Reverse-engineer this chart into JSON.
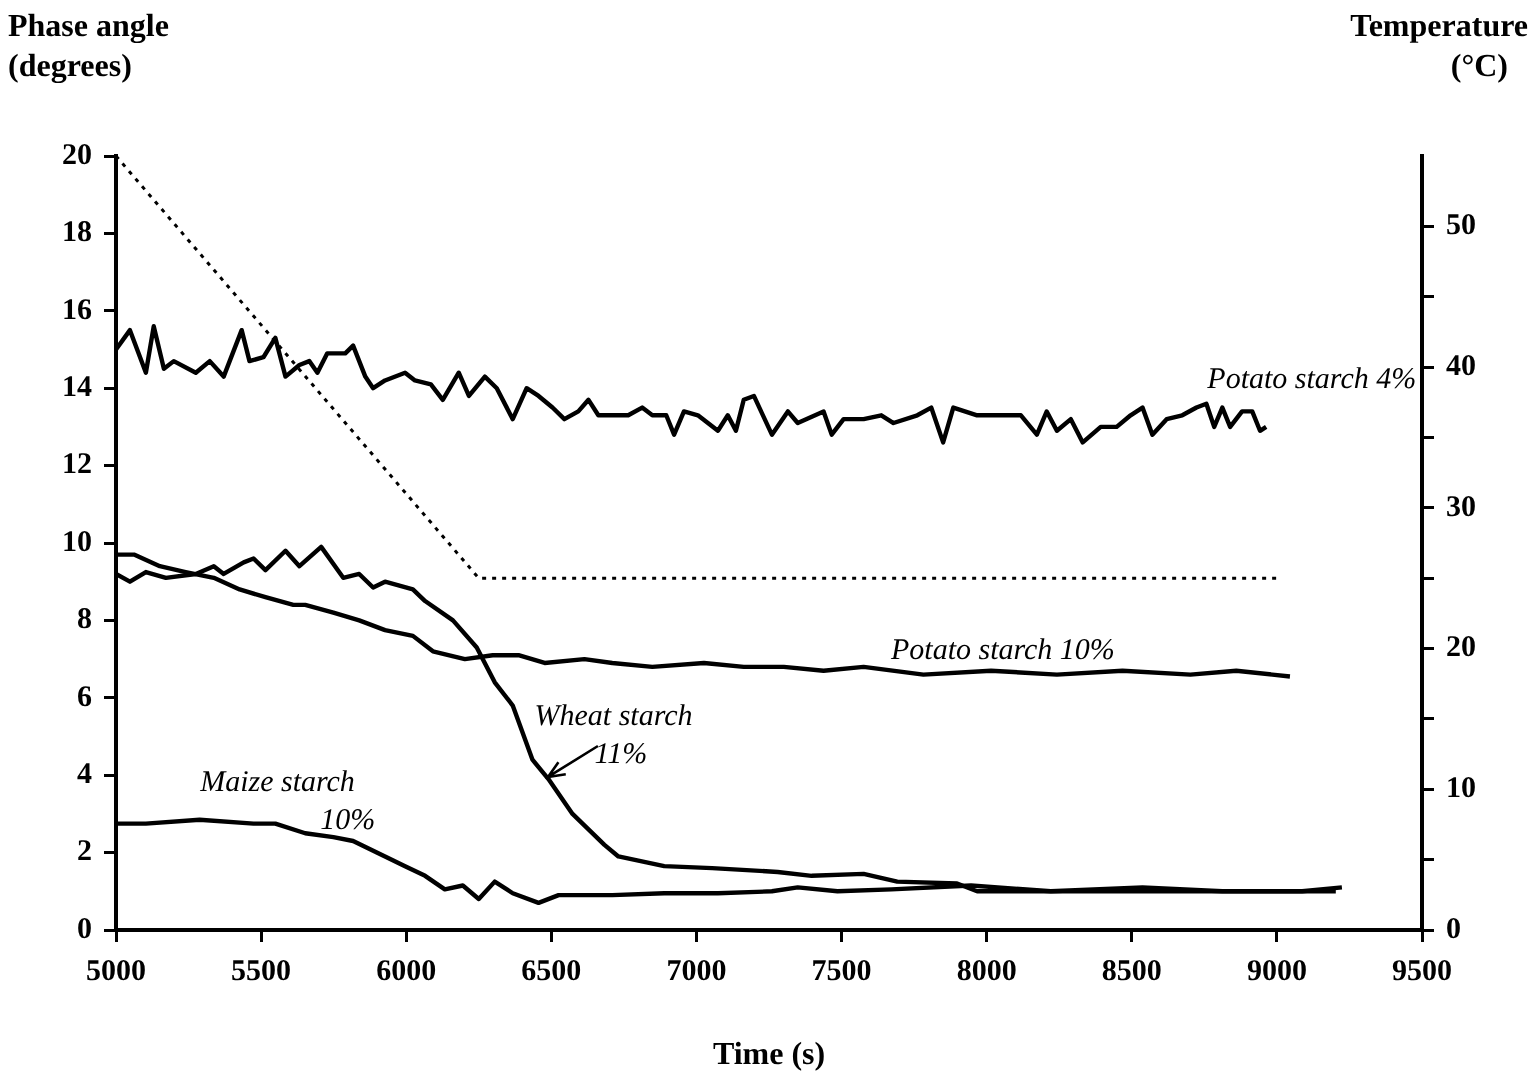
{
  "chart_data": {
    "type": "line",
    "xlabel": "Time (s)",
    "ylabel": "Phase angle (degrees)",
    "y2label": "Temperature (°C)",
    "xlim": [
      5000,
      9500
    ],
    "xticks": [
      5000,
      5500,
      6000,
      6500,
      7000,
      7500,
      8000,
      8500,
      9000,
      9500
    ],
    "ylim": [
      0,
      20
    ],
    "yticks": [
      0,
      2,
      4,
      6,
      8,
      10,
      12,
      14,
      16,
      18,
      20
    ],
    "y2lim": [
      0,
      55
    ],
    "y2ticks": [
      0,
      {
        "value": 5,
        "label": null
      },
      10,
      {
        "value": 15,
        "label": null
      },
      20,
      {
        "value": 25,
        "label": null
      },
      30,
      {
        "value": 35,
        "label": null
      },
      40,
      {
        "value": 45,
        "label": null
      },
      50
    ],
    "grid": false,
    "legend": false,
    "marker": "none",
    "series": [
      {
        "name": "Potato starch 4%",
        "color": "#000000",
        "x": [
          5000,
          5048,
          5103,
          5130,
          5165,
          5199,
          5275,
          5323,
          5371,
          5433,
          5460,
          5508,
          5549,
          5584,
          5632,
          5666,
          5694,
          5728,
          5790,
          5817,
          5859,
          5886,
          5927,
          5996,
          6030,
          6085,
          6126,
          6181,
          6216,
          6271,
          6312,
          6367,
          6415,
          6456,
          6504,
          6545,
          6593,
          6628,
          6662,
          6710,
          6765,
          6813,
          6848,
          6896,
          6923,
          6957,
          7005,
          7074,
          7108,
          7136,
          7163,
          7198,
          7260,
          7315,
          7349,
          7438,
          7466,
          7507,
          7576,
          7637,
          7679,
          7761,
          7809,
          7850,
          7885,
          7967,
          8049,
          8118,
          8173,
          8207,
          8242,
          8290,
          8331,
          8393,
          8448,
          8496,
          8537,
          8571,
          8620,
          8674,
          8723,
          8757,
          8784,
          8812,
          8839,
          8880,
          8915,
          8942,
          8963
        ],
        "values": [
          15.0,
          15.5,
          14.4,
          15.6,
          14.5,
          14.7,
          14.4,
          14.7,
          14.3,
          15.5,
          14.7,
          14.8,
          15.3,
          14.3,
          14.6,
          14.7,
          14.4,
          14.9,
          14.9,
          15.1,
          14.3,
          14.0,
          14.2,
          14.4,
          14.2,
          14.1,
          13.7,
          14.4,
          13.8,
          14.3,
          14.0,
          13.2,
          14.0,
          13.8,
          13.5,
          13.2,
          13.4,
          13.7,
          13.3,
          13.3,
          13.3,
          13.5,
          13.3,
          13.3,
          12.8,
          13.4,
          13.3,
          12.9,
          13.3,
          12.9,
          13.7,
          13.8,
          12.8,
          13.4,
          13.1,
          13.4,
          12.8,
          13.2,
          13.2,
          13.3,
          13.1,
          13.3,
          13.5,
          12.6,
          13.5,
          13.3,
          13.3,
          13.3,
          12.8,
          13.4,
          12.9,
          13.2,
          12.6,
          13.0,
          13.0,
          13.3,
          13.5,
          12.8,
          13.2,
          13.3,
          13.5,
          13.6,
          13.0,
          13.5,
          13.0,
          13.4,
          13.4,
          12.9,
          13.0
        ]
      },
      {
        "name": "Potato starch 10%",
        "color": "#000000",
        "x": [
          5000,
          5062,
          5151,
          5240,
          5337,
          5426,
          5515,
          5611,
          5652,
          5749,
          5838,
          5927,
          6023,
          6092,
          6202,
          6298,
          6387,
          6477,
          6614,
          6710,
          6848,
          7026,
          7163,
          7301,
          7438,
          7576,
          7782,
          8015,
          8242,
          8468,
          8702,
          8860,
          9045
        ],
        "values": [
          9.7,
          9.7,
          9.4,
          9.25,
          9.1,
          8.8,
          8.6,
          8.4,
          8.4,
          8.2,
          8.0,
          7.75,
          7.6,
          7.2,
          7.0,
          7.1,
          7.1,
          6.9,
          7.0,
          6.9,
          6.8,
          6.9,
          6.8,
          6.8,
          6.7,
          6.8,
          6.6,
          6.7,
          6.6,
          6.7,
          6.6,
          6.7,
          6.55
        ]
      },
      {
        "name": "Wheat starch 11%",
        "color": "#000000",
        "x": [
          5000,
          5048,
          5103,
          5172,
          5275,
          5337,
          5371,
          5440,
          5474,
          5515,
          5584,
          5632,
          5707,
          5783,
          5838,
          5886,
          5927,
          6023,
          6065,
          6161,
          6243,
          6305,
          6367,
          6435,
          6490,
          6573,
          6683,
          6731,
          6889,
          7054,
          7280,
          7397,
          7576,
          7692,
          7898,
          7967,
          8310,
          8723,
          9203
        ],
        "values": [
          9.2,
          9.0,
          9.25,
          9.1,
          9.2,
          9.4,
          9.2,
          9.5,
          9.6,
          9.3,
          9.8,
          9.4,
          9.9,
          9.1,
          9.2,
          8.85,
          9.0,
          8.8,
          8.5,
          8.0,
          7.3,
          6.4,
          5.8,
          4.4,
          3.9,
          3.0,
          2.2,
          1.9,
          1.65,
          1.6,
          1.5,
          1.4,
          1.45,
          1.25,
          1.2,
          1.0,
          1.0,
          1.0,
          1.0
        ]
      },
      {
        "name": "Maize starch 10%",
        "color": "#000000",
        "x": [
          5000,
          5103,
          5288,
          5474,
          5549,
          5652,
          5749,
          5817,
          5927,
          5996,
          6065,
          6133,
          6195,
          6250,
          6305,
          6367,
          6456,
          6525,
          6710,
          6889,
          7074,
          7260,
          7349,
          7486,
          7672,
          7946,
          8221,
          8537,
          8812,
          9087,
          9224
        ],
        "values": [
          2.75,
          2.75,
          2.85,
          2.75,
          2.75,
          2.5,
          2.4,
          2.3,
          1.9,
          1.65,
          1.4,
          1.05,
          1.15,
          0.8,
          1.25,
          0.95,
          0.7,
          0.9,
          0.9,
          0.95,
          0.95,
          1.0,
          1.1,
          1.0,
          1.05,
          1.15,
          1.0,
          1.1,
          1.0,
          1.0,
          1.1
        ]
      },
      {
        "color": "#000000",
        "axis": "y2",
        "line_style": "dotted",
        "x": [
          5000,
          6250,
          9000
        ],
        "values": [
          55,
          25,
          25
        ]
      }
    ]
  }
}
